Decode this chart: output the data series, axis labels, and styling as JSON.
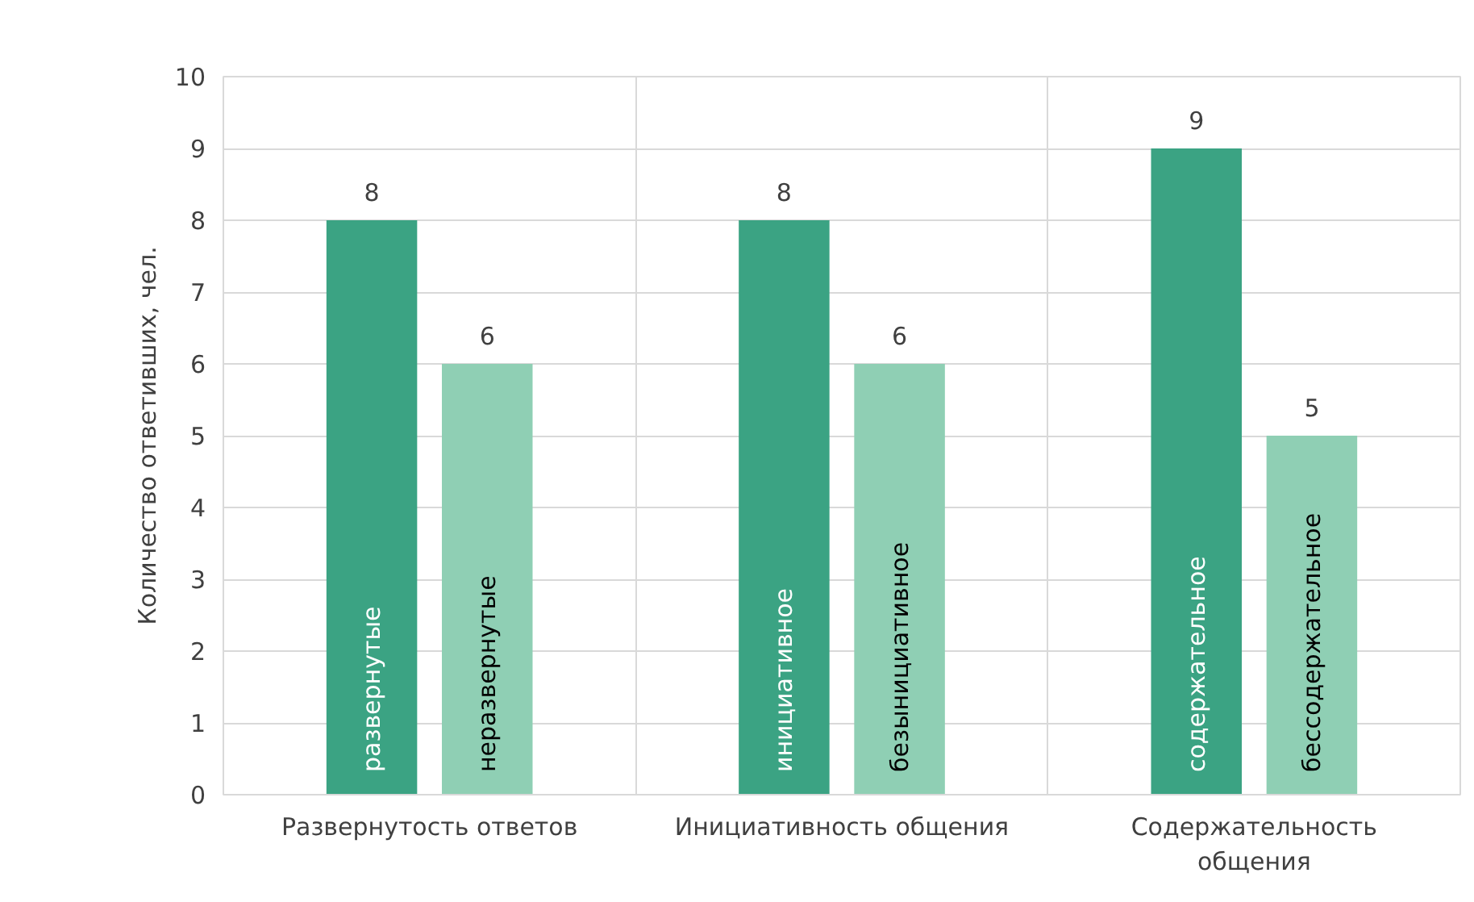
{
  "chart_data": {
    "type": "bar",
    "ylabel": "Количество ответивших, чел.",
    "categories": [
      "Развернутость ответов",
      "Инициативность общения",
      "Содержательность общения"
    ],
    "series": [
      {
        "color": "#3ba383",
        "values": [
          8,
          8,
          9
        ]
      },
      {
        "color": "#8fcfb4",
        "values": [
          6,
          6,
          5
        ]
      }
    ],
    "annotations": [
      "развернутые",
      "неразвернутые",
      "инициативное",
      "безынициативное",
      "содержательное",
      "бессодержательное"
    ],
    "ylim": [
      0,
      10
    ],
    "yticks": [
      0,
      1,
      2,
      3,
      4,
      5,
      6,
      7,
      8,
      9,
      10
    ],
    "grid": true,
    "data_labels": true
  }
}
